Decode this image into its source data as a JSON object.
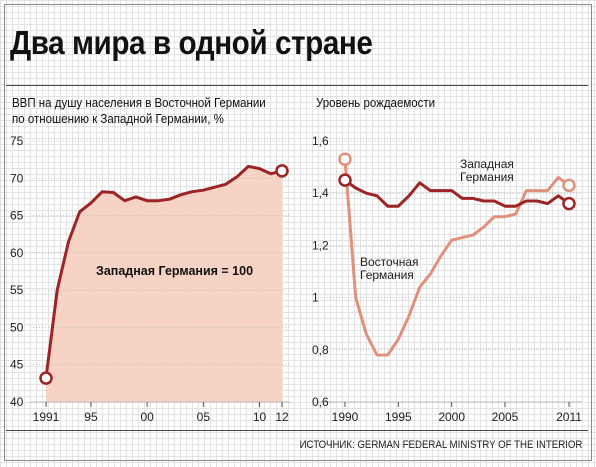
{
  "title": "Два мира в одной стране",
  "source": "ИСТОЧНИК: GERMAN FEDERAL MINISTRY OF THE INTERIOR",
  "colors": {
    "east": "#e0917c",
    "west": "#9c2424",
    "fill": "#f6d3c4",
    "grid": "#bdbdbd"
  },
  "chart_data": [
    {
      "type": "area",
      "title_lines": [
        "ВВП на душу населения в Восточной Германии",
        "по отношению к Западной Германии, %"
      ],
      "annotation": "Западная Германия = 100",
      "x": [
        1991,
        1992,
        1993,
        1994,
        1995,
        1996,
        1997,
        1998,
        1999,
        2000,
        2001,
        2002,
        2003,
        2004,
        2005,
        2006,
        2007,
        2008,
        2009,
        2010,
        2011,
        2012
      ],
      "series": [
        {
          "values": [
            43.2,
            55.0,
            61.5,
            65.5,
            66.7,
            68.2,
            68.1,
            67.0,
            67.5,
            67.0,
            67.0,
            67.2,
            67.8,
            68.2,
            68.4,
            68.8,
            69.2,
            70.2,
            71.6,
            71.3,
            70.6,
            71.0
          ]
        }
      ],
      "xticks": [
        1991,
        1995,
        2000,
        2005,
        2010,
        2012
      ],
      "xtick_labels": [
        "1991",
        "95",
        "00",
        "05",
        "10",
        "12"
      ],
      "yticks": [
        40,
        45,
        50,
        55,
        60,
        65,
        70,
        75
      ],
      "ylim": [
        40,
        75
      ],
      "xlim": [
        1991,
        2012
      ]
    },
    {
      "type": "line",
      "title": "Уровень рождаемости",
      "x": [
        1990,
        1991,
        1992,
        1993,
        1994,
        1995,
        1996,
        1997,
        1998,
        1999,
        2000,
        2001,
        2002,
        2003,
        2004,
        2005,
        2006,
        2007,
        2008,
        2009,
        2010,
        2011
      ],
      "series": [
        {
          "name": "Западная Германия",
          "values": [
            1.45,
            1.42,
            1.4,
            1.39,
            1.35,
            1.35,
            1.39,
            1.44,
            1.41,
            1.41,
            1.41,
            1.38,
            1.38,
            1.37,
            1.37,
            1.35,
            1.35,
            1.37,
            1.37,
            1.36,
            1.39,
            1.36
          ]
        },
        {
          "name": "Восточная Германия",
          "values": [
            1.53,
            1.0,
            0.86,
            0.78,
            0.78,
            0.84,
            0.93,
            1.04,
            1.09,
            1.16,
            1.22,
            1.23,
            1.24,
            1.27,
            1.31,
            1.31,
            1.32,
            1.41,
            1.41,
            1.41,
            1.46,
            1.43
          ]
        }
      ],
      "xticks": [
        1990,
        1995,
        2000,
        2005,
        2011
      ],
      "xtick_labels": [
        "1990",
        "1995",
        "2000",
        "2005",
        "2011"
      ],
      "yticks": [
        0.6,
        0.8,
        1.0,
        1.2,
        1.4,
        1.6
      ],
      "ytick_labels": [
        "0,6",
        "0,8",
        "1",
        "1,2",
        "1,4",
        "1,6"
      ],
      "ylim": [
        0.6,
        1.6
      ],
      "xlim": [
        1990,
        2011
      ],
      "series_labels": {
        "west": [
          "Западная",
          "Германия"
        ],
        "east": [
          "Восточная",
          "Германия"
        ]
      }
    }
  ]
}
